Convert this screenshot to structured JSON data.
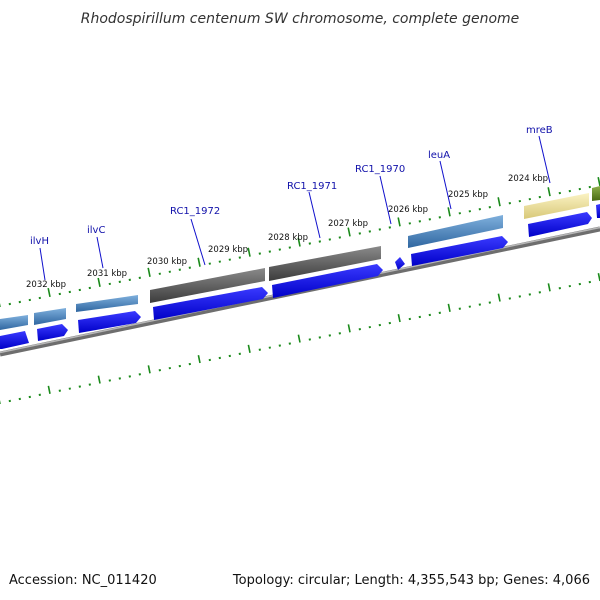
{
  "title_prefix": "Rhodospirillum centenum SW",
  "title_suffix": "chromosome, complete genome",
  "footer": {
    "accession": "Accession: NC_011420",
    "summary": "Topology: circular; Length: 4,355,543 bp; Genes: 4,066"
  },
  "scale_labels": [
    "2032 kbp",
    "2031 kbp",
    "2030 kbp",
    "2029 kbp",
    "2028 kbp",
    "2027 kbp",
    "2026 kbp",
    "2025 kbp",
    "2024 kbp"
  ],
  "gene_labels": [
    "ilvH",
    "ilvC",
    "RC1_1972",
    "RC1_1971",
    "RC1_1970",
    "leuA",
    "mreB"
  ],
  "colors": {
    "cds": "#0000ee",
    "gene_blue": "#4a7fb5",
    "gene_gray": "#555555",
    "gene_yellow": "#f0e6a0",
    "gene_olive": "#6b8e23",
    "tick": "#1a8a1a",
    "backbone": "#808080",
    "label": "#1111aa"
  }
}
